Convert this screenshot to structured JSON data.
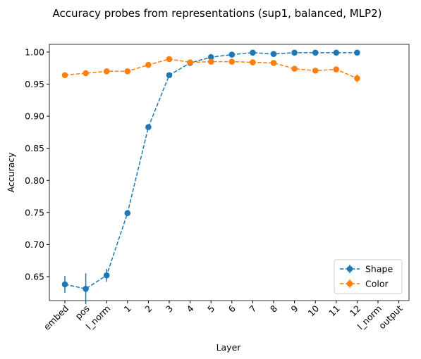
{
  "chart_data": {
    "type": "line",
    "title": "Accuracy probes from representations (sup1, balanced, MLP2)",
    "x_label": "Layer",
    "y_label": "Accuracy",
    "categories": [
      "embed",
      "pos",
      "l_norm",
      "1",
      "2",
      "3",
      "4",
      "5",
      "6",
      "7",
      "8",
      "9",
      "10",
      "11",
      "12",
      "l_norm",
      "output"
    ],
    "series": [
      {
        "name": "Shape",
        "color": "#1f77b4",
        "values": [
          0.638,
          0.631,
          0.652,
          0.749,
          0.883,
          0.964,
          0.983,
          0.992,
          0.996,
          0.999,
          0.997,
          0.999,
          0.999,
          0.999,
          0.999,
          null,
          null
        ],
        "errors": [
          0.013,
          0.024,
          0.01,
          0.003,
          0.003,
          0.002,
          0.002,
          0.005,
          0.002,
          0.001,
          0.001,
          0.001,
          0.001,
          0.001,
          0.001,
          null,
          null
        ]
      },
      {
        "name": "Color",
        "color": "#ff7f0e",
        "values": [
          0.964,
          0.967,
          0.97,
          0.97,
          0.98,
          0.989,
          0.984,
          0.985,
          0.985,
          0.984,
          0.983,
          0.974,
          0.971,
          0.973,
          0.959,
          null,
          null
        ],
        "errors": [
          0.002,
          0.002,
          0.002,
          0.002,
          0.002,
          0.002,
          0.002,
          0.002,
          0.002,
          0.002,
          0.002,
          0.002,
          0.002,
          0.002,
          0.006,
          null,
          null
        ]
      }
    ],
    "ylim": [
      0.6127,
      1.012
    ],
    "yticks": [
      {
        "value": 0.65,
        "label": "0.65"
      },
      {
        "value": 0.7,
        "label": "0.70"
      },
      {
        "value": 0.75,
        "label": "0.75"
      },
      {
        "value": 0.8,
        "label": "0.80"
      },
      {
        "value": 0.85,
        "label": "0.85"
      },
      {
        "value": 0.9,
        "label": "0.90"
      },
      {
        "value": 0.95,
        "label": "0.95"
      },
      {
        "value": 1,
        "label": "1.00"
      }
    ],
    "line_style": "dashed",
    "legend": "lower right",
    "grid": false
  }
}
